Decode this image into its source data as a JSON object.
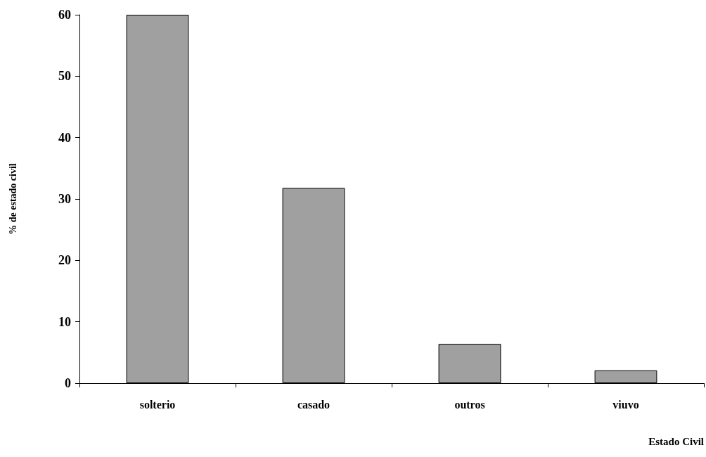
{
  "chart_data": {
    "type": "bar",
    "xlabel": "Estado Civil",
    "ylabel": "% de estado civil",
    "categories": [
      "solterio",
      "casado",
      "outros",
      "viuvo"
    ],
    "values": [
      60,
      31.8,
      6.4,
      2.1
    ],
    "color": "#a0a0a0",
    "ylim": [
      0,
      60
    ],
    "yticks": [
      0,
      10,
      20,
      30,
      40,
      50,
      60
    ],
    "grid": false
  }
}
